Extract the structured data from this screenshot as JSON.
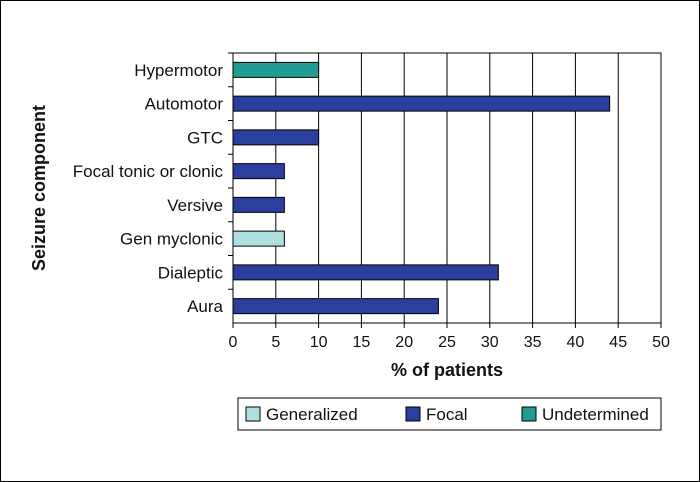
{
  "chart_data": {
    "type": "bar",
    "orientation": "horizontal",
    "xlabel": "% of patients",
    "ylabel": "Seizure component",
    "xlim": [
      0,
      50
    ],
    "x_ticks": [
      0,
      5,
      10,
      15,
      20,
      25,
      30,
      35,
      40,
      45,
      50
    ],
    "grid": "vertical",
    "legend_position": "bottom-right",
    "legend": [
      {
        "name": "Generalized",
        "color": "#aee0e0"
      },
      {
        "name": "Focal",
        "color": "#2b3f9e"
      },
      {
        "name": "Undetermined",
        "color": "#229b94"
      }
    ],
    "bars": [
      {
        "category": "Hypermotor",
        "value": 10,
        "series": "Undetermined"
      },
      {
        "category": "Automotor",
        "value": 44,
        "series": "Focal"
      },
      {
        "category": "GTC",
        "value": 10,
        "series": "Focal"
      },
      {
        "category": "Focal tonic or clonic",
        "value": 6,
        "series": "Focal"
      },
      {
        "category": "Versive",
        "value": 6,
        "series": "Focal"
      },
      {
        "category": "Gen myclonic",
        "value": 6,
        "series": "Generalized"
      },
      {
        "category": "Dialeptic",
        "value": 31,
        "series": "Focal"
      },
      {
        "category": "Aura",
        "value": 24,
        "series": "Focal"
      }
    ]
  }
}
